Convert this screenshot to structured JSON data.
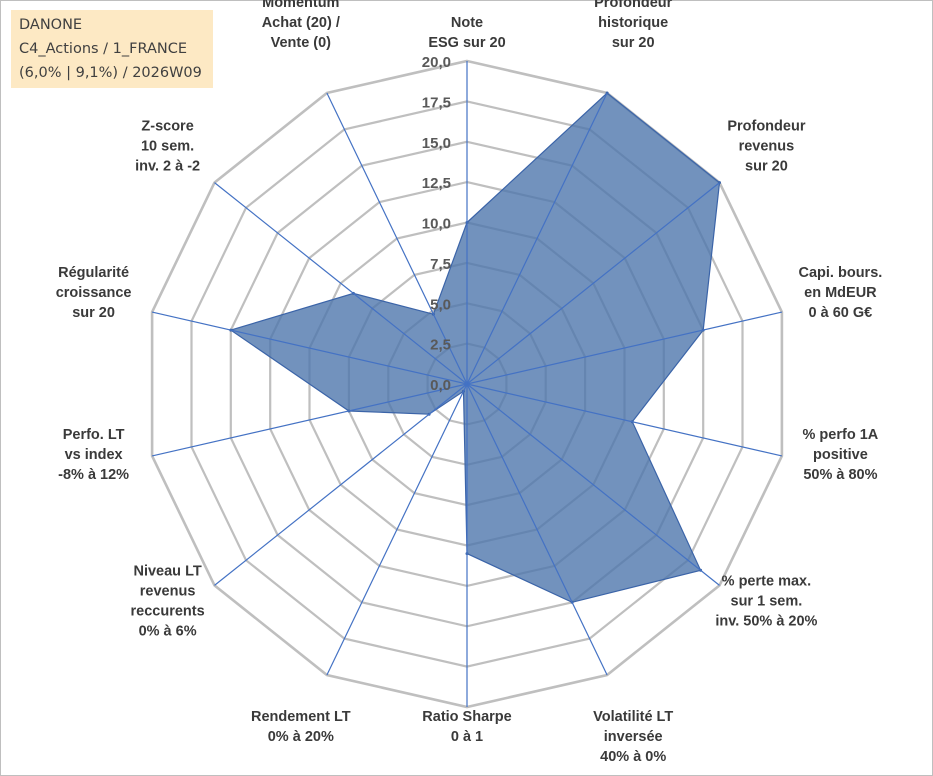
{
  "info": {
    "line1": "DANONE",
    "line2": "C4_Actions / 1_FRANCE",
    "line3": "(6,0% | 9,1%) / 2026W09"
  },
  "colors": {
    "grid": "#bfbfbf",
    "spoke": "#4472c4",
    "fill": "#4f77ad",
    "stroke": "#3b64a8"
  },
  "chart_data": {
    "type": "radar",
    "title": "",
    "rlim": [
      0,
      20
    ],
    "rticks": [
      "0,0",
      "2,5",
      "5,0",
      "7,5",
      "10,0",
      "12,5",
      "15,0",
      "17,5",
      "20,0"
    ],
    "categories": [
      [
        "Note",
        "ESG sur 20"
      ],
      [
        "Profondeur",
        "historique",
        "sur 20"
      ],
      [
        "Profondeur",
        "revenus",
        "sur 20"
      ],
      [
        "Capi. bours.",
        "en MdEUR",
        "0 à 60 G€"
      ],
      [
        "% perfo 1A",
        "positive",
        "50% à 80%"
      ],
      [
        "% perte max.",
        "sur 1 sem.",
        "inv. 50% à 20%"
      ],
      [
        "Volatilité LT",
        "inversée",
        "40% à 0%"
      ],
      [
        "Ratio Sharpe",
        "0 à 1"
      ],
      [
        "Rendement LT",
        "0% à 20%"
      ],
      [
        "Niveau LT",
        "revenus",
        "reccurents",
        "0% à 6%"
      ],
      [
        "Perfo. LT",
        "vs index",
        "-8% à 12%"
      ],
      [
        "Régularité",
        "croissance",
        "sur 20"
      ],
      [
        "Z-score",
        "10 sem.",
        "inv. 2 à -2"
      ],
      [
        "Momentum",
        "Achat (20) /",
        "Vente (0)"
      ]
    ],
    "series": [
      {
        "name": "DANONE",
        "values": [
          10.0,
          20.0,
          20.0,
          15.0,
          10.5,
          18.5,
          15.0,
          10.5,
          0.5,
          3.0,
          7.5,
          15.0,
          9.0,
          4.8
        ]
      }
    ]
  }
}
